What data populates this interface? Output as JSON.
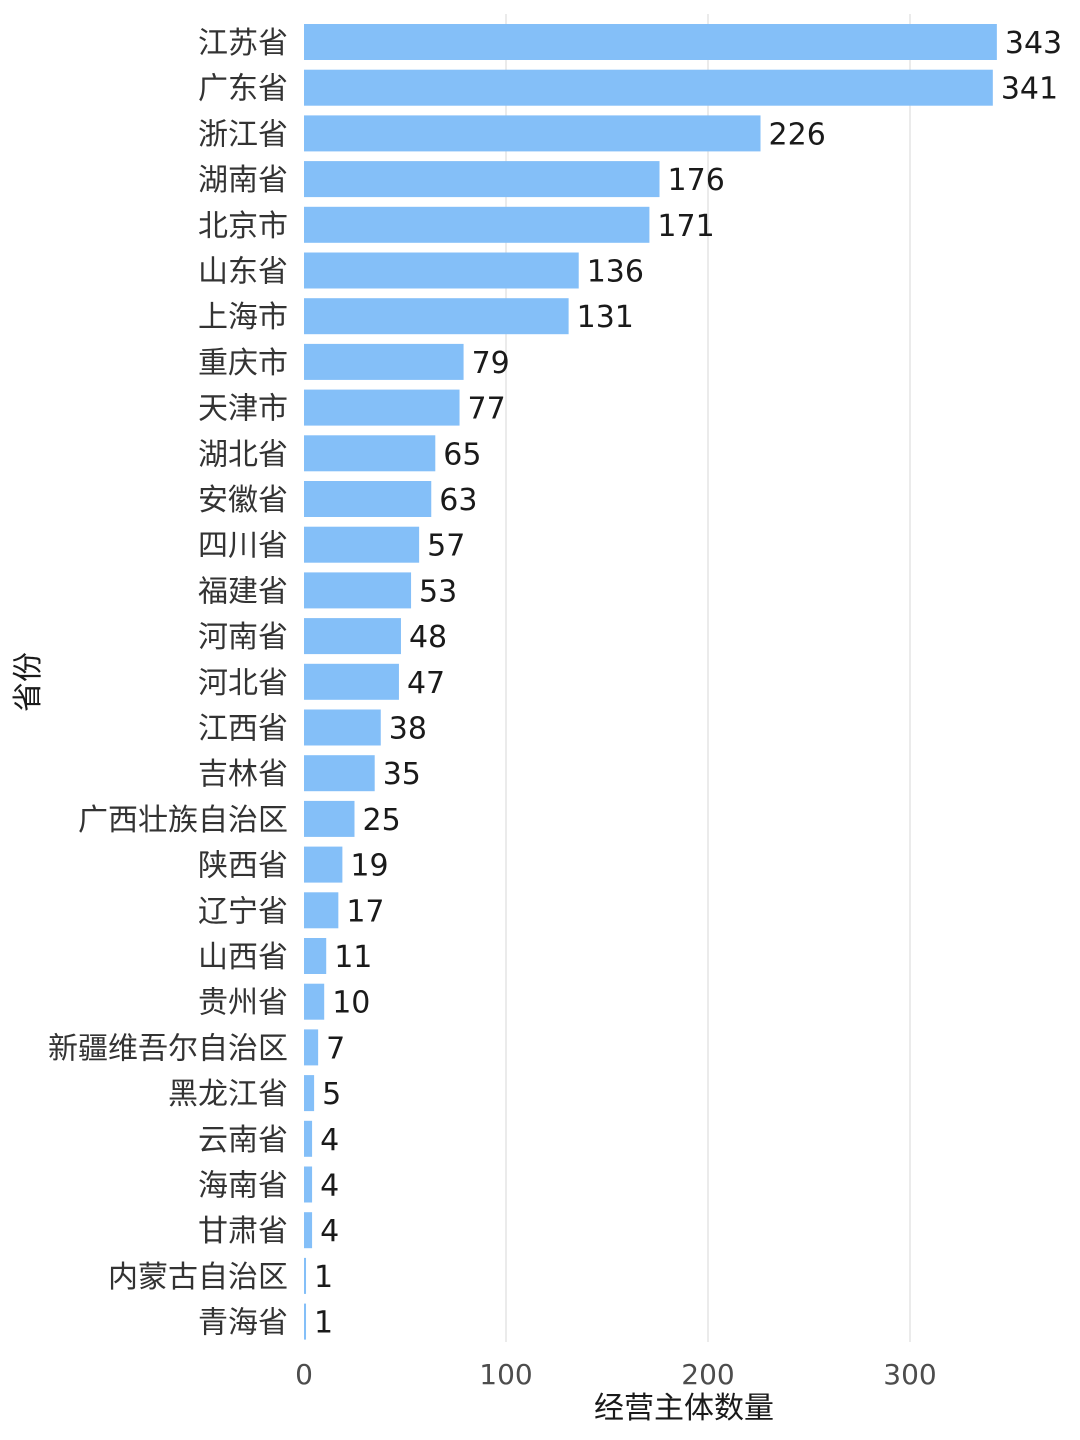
{
  "chart_data": {
    "type": "bar",
    "orientation": "horizontal",
    "xlabel": "经营主体数量",
    "ylabel": "省份",
    "xlim": [
      0,
      350
    ],
    "xticks": [
      0,
      100,
      200,
      300
    ],
    "grid": true,
    "bar_color": "#84bff8",
    "categories": [
      "江苏省",
      "广东省",
      "浙江省",
      "湖南省",
      "北京市",
      "山东省",
      "上海市",
      "重庆市",
      "天津市",
      "湖北省",
      "安徽省",
      "四川省",
      "福建省",
      "河南省",
      "河北省",
      "江西省",
      "吉林省",
      "广西壮族自治区",
      "陕西省",
      "辽宁省",
      "山西省",
      "贵州省",
      "新疆维吾尔自治区",
      "黑龙江省",
      "云南省",
      "海南省",
      "甘肃省",
      "内蒙古自治区",
      "青海省"
    ],
    "values": [
      343,
      341,
      226,
      176,
      171,
      136,
      131,
      79,
      77,
      65,
      63,
      57,
      53,
      48,
      47,
      38,
      35,
      25,
      19,
      17,
      11,
      10,
      7,
      5,
      4,
      4,
      4,
      1,
      1
    ]
  }
}
